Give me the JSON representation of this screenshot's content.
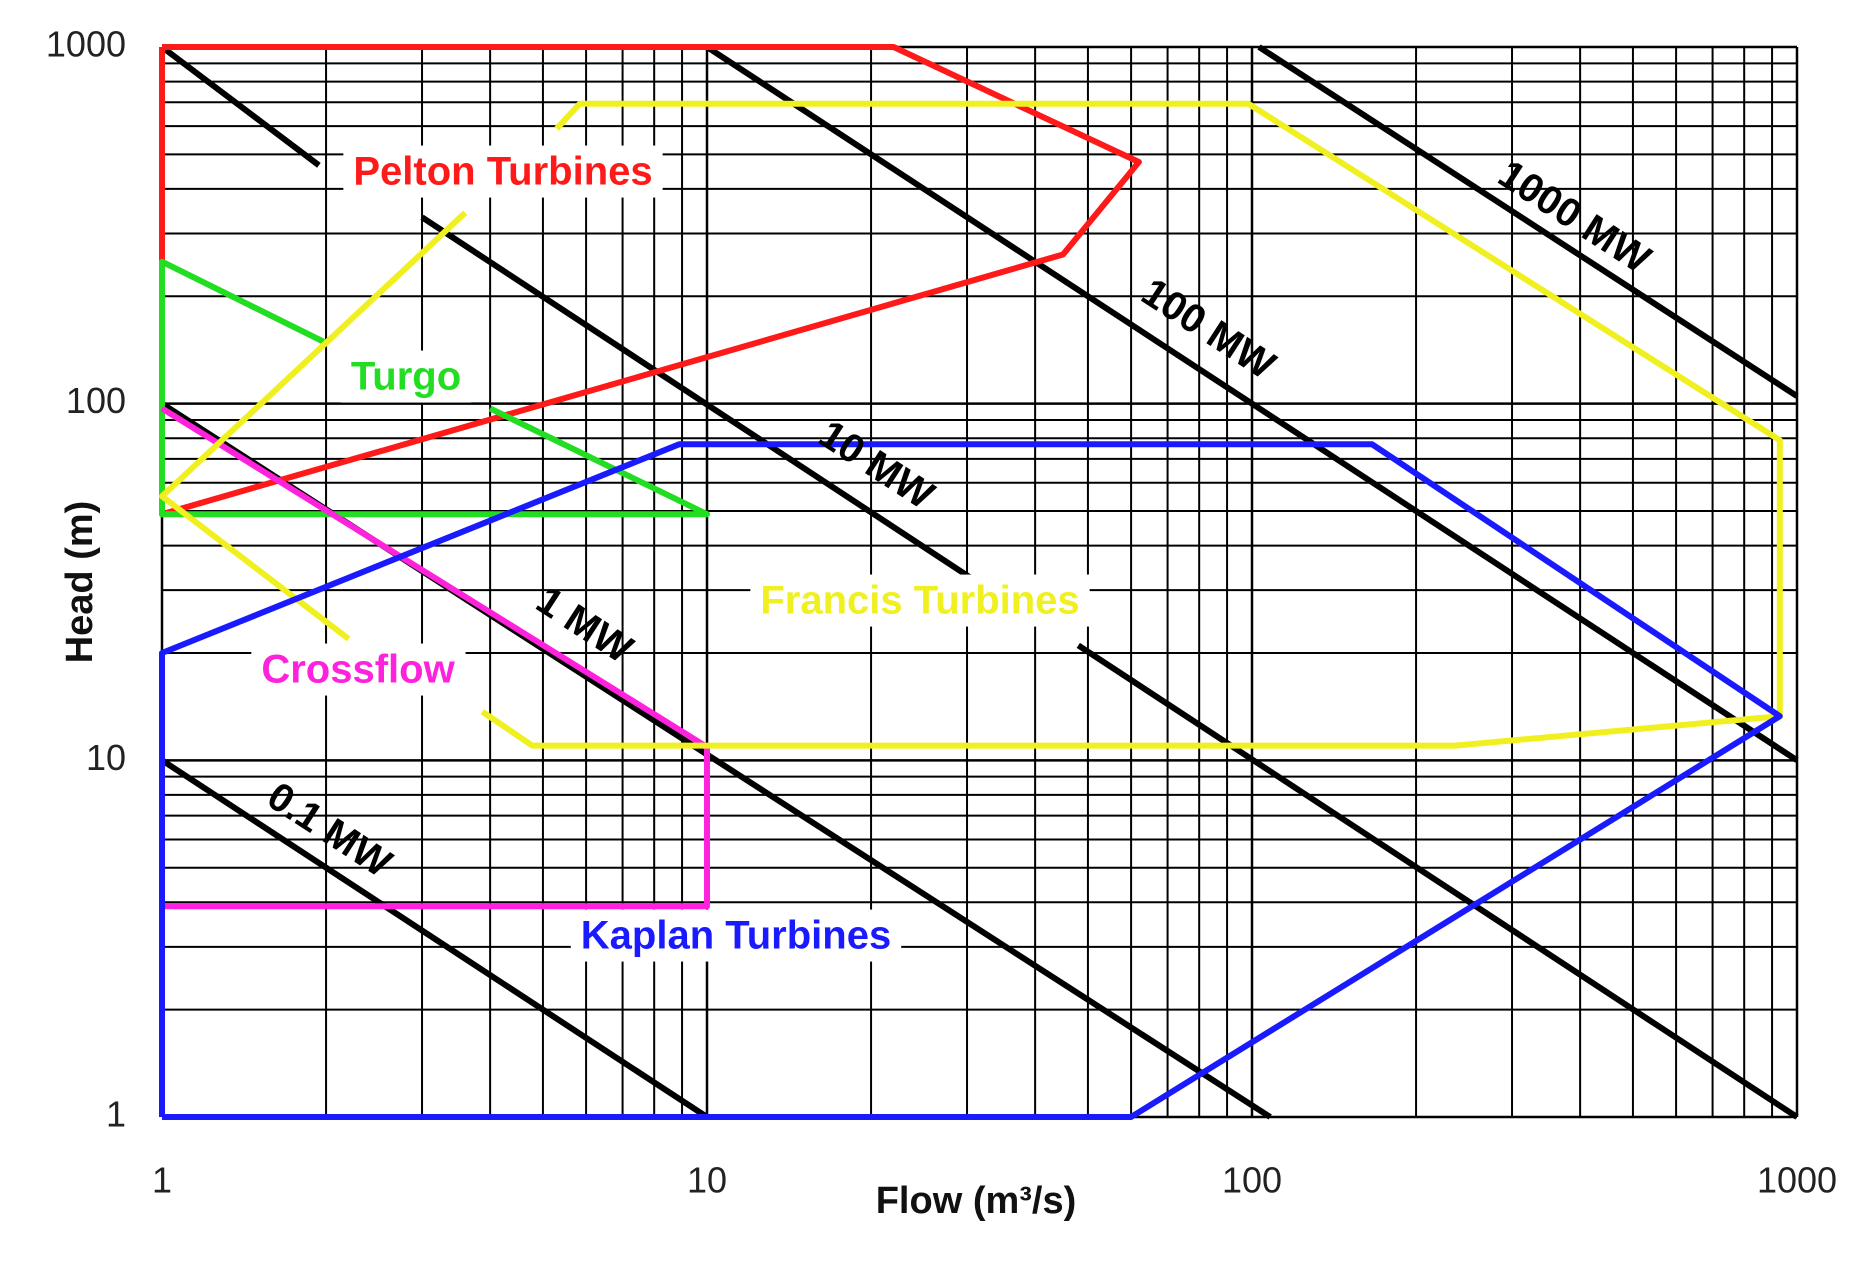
{
  "chart_data": {
    "type": "line",
    "x_label": "Flow (m³/s)",
    "y_label": "Head (m)",
    "xscale": "log",
    "yscale": "log",
    "xlim": [
      1,
      1000
    ],
    "ylim": [
      1,
      1000
    ],
    "xticks": [
      1,
      10,
      100,
      1000
    ],
    "yticks": [
      1,
      10,
      100,
      1000
    ],
    "grid": true,
    "minor_grid": true,
    "series": [
      {
        "name": "1000 MW",
        "color": "#000000",
        "x": [
          103,
          1000
        ],
        "y": [
          1000,
          105
        ]
      },
      {
        "name": "100 MW",
        "color": "#000000",
        "x": [
          10,
          1000
        ],
        "y": [
          1000,
          10
        ]
      },
      {
        "name": "10 MW",
        "color": "#000000",
        "x": [
          1,
          1.94,
          null,
          3,
          33,
          null,
          48,
          1000
        ],
        "y": [
          1000,
          466,
          null,
          333,
          30,
          null,
          21,
          1
        ]
      },
      {
        "name": "1 MW",
        "color": "#000000",
        "x": [
          1,
          108
        ],
        "y": [
          100,
          1
        ]
      },
      {
        "name": "0.1 MW",
        "color": "#000000",
        "x": [
          1,
          10
        ],
        "y": [
          10,
          1
        ]
      },
      {
        "name": "Pelton Turbines",
        "color": "#ff1a1a",
        "x": [
          1,
          22,
          62,
          45,
          1,
          1
        ],
        "y": [
          1000,
          1000,
          476,
          262,
          49,
          1000
        ]
      },
      {
        "name": "Turgo",
        "color": "#22dd22",
        "x": [
          2,
          1,
          1,
          10,
          4
        ],
        "y": [
          148,
          250,
          49,
          49,
          97
        ]
      },
      {
        "name": "Crossflow",
        "color": "#ff22dd",
        "x": [
          1,
          10,
          10,
          1,
          1
        ],
        "y": [
          97,
          10.9,
          3.9,
          3.9,
          20
        ]
      },
      {
        "name": "Francis Turbines",
        "color": "#f0f020",
        "x": [
          3.87,
          4.78,
          236,
          930,
          930,
          98.5,
          5.84,
          5.3,
          null,
          3.6,
          1,
          2.2
        ],
        "y": [
          13.7,
          11,
          11,
          13.3,
          79,
          693,
          693,
          590,
          null,
          343,
          55,
          21.9
        ]
      },
      {
        "name": "Kaplan Turbines",
        "color": "#1a1aff",
        "x": [
          1,
          60,
          930,
          166,
          8.9,
          1,
          1
        ],
        "y": [
          1,
          1,
          13.3,
          77,
          77,
          20,
          1
        ]
      }
    ]
  }
}
